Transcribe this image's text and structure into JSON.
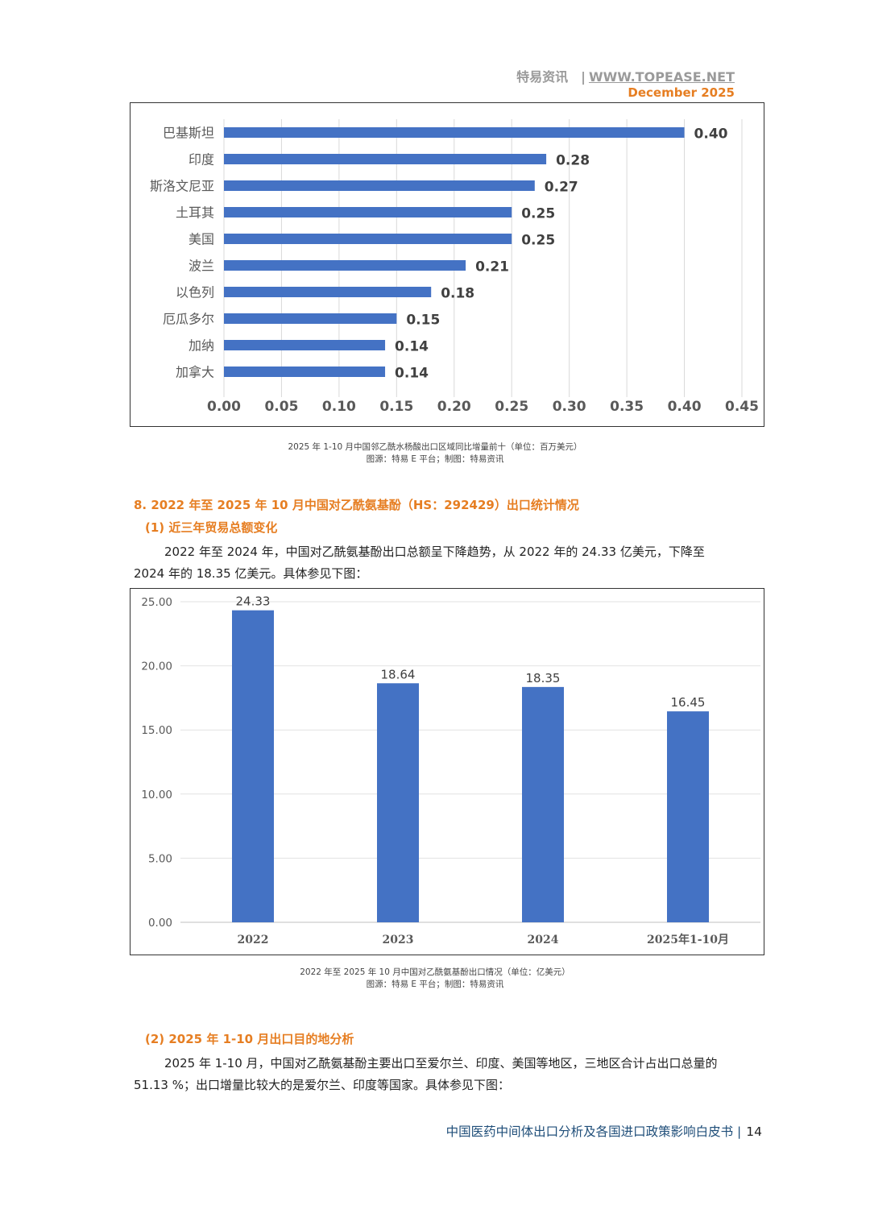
{
  "header": {
    "brand": "特易资讯",
    "separator": "|",
    "url": "WWW.TOPEASE.NET",
    "date": "December  2025"
  },
  "chart_data": [
    {
      "type": "bar",
      "orientation": "horizontal",
      "categories": [
        "巴基斯坦",
        "印度",
        "斯洛文尼亚",
        "土耳其",
        "美国",
        "波兰",
        "以色列",
        "厄瓜多尔",
        "加纳",
        "加拿大"
      ],
      "values": [
        0.4,
        0.28,
        0.27,
        0.25,
        0.25,
        0.21,
        0.18,
        0.15,
        0.14,
        0.14
      ],
      "data_labels": [
        "0.40",
        "0.28",
        "0.27",
        "0.25",
        "0.25",
        "0.21",
        "0.18",
        "0.15",
        "0.14",
        "0.14"
      ],
      "xlim": [
        0,
        0.45
      ],
      "ticks": [
        "0.00",
        "0.05",
        "0.10",
        "0.15",
        "0.20",
        "0.25",
        "0.30",
        "0.35",
        "0.40",
        "0.45"
      ],
      "grid": true,
      "bar_color": "#4472c4"
    },
    {
      "type": "bar",
      "orientation": "vertical",
      "categories": [
        "2022",
        "2023",
        "2024",
        "2025年1-10月"
      ],
      "values": [
        24.33,
        18.64,
        18.35,
        16.45
      ],
      "data_labels": [
        "24.33",
        "18.64",
        "18.35",
        "16.45"
      ],
      "ylim": [
        0,
        25
      ],
      "ticks": [
        "0.00",
        "5.00",
        "10.00",
        "15.00",
        "20.00",
        "25.00"
      ],
      "grid": true,
      "bar_color": "#4472c4"
    }
  ],
  "caption1": {
    "line1": "2025 年 1-10 月中国邻乙酰水杨酸出口区域同比增量前十（单位：百万美元）",
    "line2": "图源：特易 E 平台；制图：特易资讯"
  },
  "section8": {
    "title": "8. 2022 年至 2025 年 10 月中国对乙酰氨基酚（HS：292429）出口统计情况",
    "sub1": "(1) 近三年贸易总额变化",
    "para1": "2022 年至 2024 年，中国对乙酰氨基酚出口总额呈下降趋势，从 2022 年的 24.33 亿美元，下降至 2024 年的 18.35 亿美元。具体参见下图："
  },
  "caption2": {
    "line1": "2022 年至 2025 年 10 月中国对乙酰氨基酚出口情况（单位：亿美元）",
    "line2": "图源：特易 E 平台；制图：特易资讯"
  },
  "section8b": {
    "sub2": "(2) 2025 年 1-10 月出口目的地分析",
    "para2": "2025 年 1-10 月，中国对乙酰氨基酚主要出口至爱尔兰、印度、美国等地区，三地区合计占出口总量的 51.13 %；出口增量比较大的是爱尔兰、印度等国家。具体参见下图："
  },
  "footer": {
    "title": "中国医药中间体出口分析及各国进口政策影响白皮书 |",
    "page": "14"
  }
}
